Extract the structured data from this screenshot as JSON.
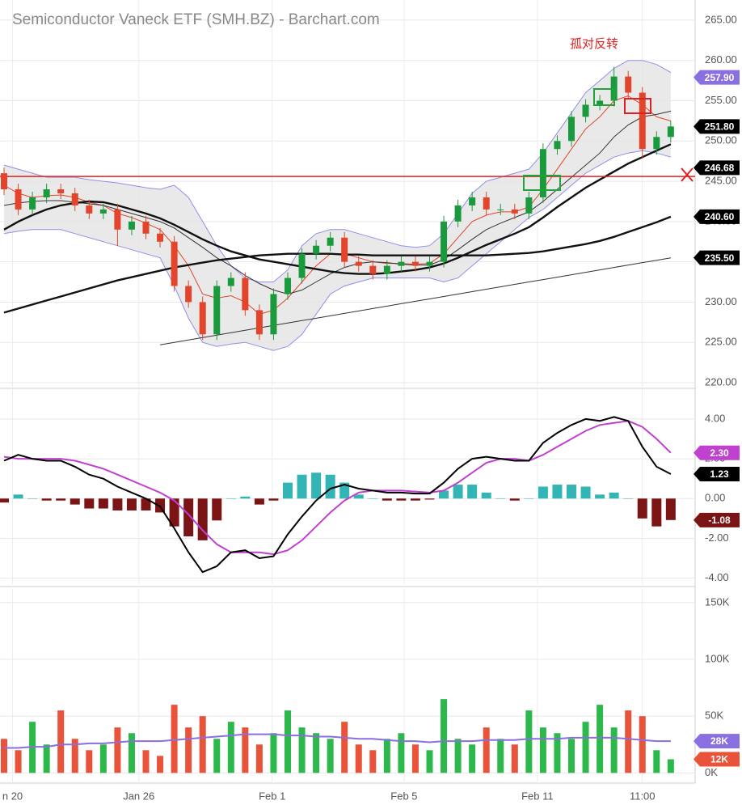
{
  "chart_data": [
    {
      "type": "candlestick",
      "title": "Semiconductor Vaneck ETF (SMH.BZ) - Barchart.com",
      "annotation": "孤对反转",
      "up_color": "#1a9a3c",
      "down_color": "#e2452b",
      "open": [
        246,
        244,
        241.5,
        243,
        244,
        243.5,
        242,
        241,
        241.5,
        239,
        240,
        238.5,
        237.5,
        232,
        230,
        226,
        232,
        233,
        229,
        226,
        231,
        233,
        236,
        237,
        238,
        235,
        234.5,
        233.5,
        234.5,
        235,
        234.5,
        235,
        240,
        242,
        243,
        241.5,
        241.5,
        241,
        243,
        249,
        250,
        253,
        254.5,
        255,
        258,
        256,
        249,
        250.5
      ],
      "high": [
        246.7,
        244.7,
        243.7,
        244.7,
        244.7,
        244.2,
        242.7,
        242.2,
        242.2,
        240.7,
        240.7,
        239.2,
        238.2,
        232.7,
        230.7,
        232.7,
        233.7,
        233.7,
        229.7,
        231.7,
        233.7,
        236.7,
        237.7,
        238.7,
        238.7,
        235.7,
        235.2,
        235.2,
        235.7,
        235.7,
        235.7,
        240.7,
        242.7,
        243.7,
        243.7,
        242.2,
        242.2,
        243.7,
        249.7,
        250.7,
        253.7,
        255.2,
        255.7,
        259.2,
        258.7,
        256.7,
        251.2,
        252.5
      ],
      "low": [
        243.3,
        240.8,
        240.8,
        242.3,
        242.8,
        241.3,
        240.3,
        240.3,
        237,
        238.3,
        237.8,
        236.8,
        231.3,
        229.3,
        225.3,
        225.3,
        231.3,
        228.3,
        225.3,
        225.3,
        230.3,
        232.3,
        235.3,
        236.3,
        234.3,
        233.8,
        232.8,
        232.8,
        233.8,
        233.8,
        233.8,
        234.3,
        239.3,
        241.3,
        240.8,
        240.8,
        240.3,
        240.3,
        242.3,
        248.3,
        249.3,
        252.3,
        253.8,
        254.3,
        255.3,
        247.8,
        248.3,
        249.8
      ],
      "close": [
        244,
        241.5,
        243,
        244,
        243.5,
        242,
        241,
        241.5,
        239,
        240,
        238.5,
        237.5,
        232,
        230,
        226,
        232,
        233,
        229,
        226,
        231,
        233,
        236,
        237,
        238,
        235,
        234.5,
        233.5,
        234.5,
        235,
        234.5,
        235,
        240,
        242,
        243,
        241.5,
        241.5,
        241,
        243,
        249,
        250,
        253,
        254.5,
        255,
        258,
        256,
        249,
        250.5,
        251.8
      ],
      "band": {
        "color": "#8f8fe8",
        "fill": "#e4e4e4",
        "upper": [
          247,
          246.5,
          246,
          245.5,
          245.5,
          245.5,
          245.2,
          245,
          244.8,
          244.5,
          244.2,
          244,
          244.5,
          243,
          240,
          237,
          234.5,
          233,
          232.5,
          232.5,
          234,
          237,
          238.5,
          239,
          239,
          238.5,
          238,
          237.5,
          237,
          236.8,
          237,
          238.5,
          241,
          243.5,
          245,
          245.5,
          246,
          246.5,
          248.5,
          251,
          253.5,
          256,
          257.5,
          259,
          260,
          260,
          259.5,
          258.5
        ],
        "lower": [
          238.5,
          238.8,
          239,
          239,
          239,
          238.5,
          238,
          237.5,
          237,
          236.5,
          236,
          235.5,
          232,
          228,
          225,
          224.5,
          224.8,
          225,
          224.5,
          224,
          224.5,
          226,
          228.5,
          231,
          232,
          232.5,
          233,
          233,
          233,
          233,
          233,
          232.5,
          233,
          234.5,
          236,
          237.5,
          239,
          240.5,
          241.5,
          243,
          244.5,
          246,
          247,
          248,
          248.5,
          248.8,
          248.5,
          248
        ]
      },
      "lines": [
        {
          "color": "#e2452b",
          "width": 1,
          "values": [
            244.5,
            243.5,
            243,
            243.2,
            243.3,
            243,
            242.4,
            242,
            241,
            240.5,
            239.8,
            239,
            237,
            234.5,
            231,
            230.5,
            230.8,
            230,
            228.5,
            229,
            230.5,
            232.5,
            234.5,
            236,
            236,
            235.5,
            235,
            234.8,
            234.8,
            234.7,
            234.8,
            236,
            238,
            240,
            240.8,
            241.2,
            241.2,
            241.8,
            244,
            246.5,
            249,
            251.5,
            253,
            255,
            255.6,
            254.5,
            253,
            252.5
          ]
        },
        {
          "color": "#333333",
          "width": 1,
          "values": [
            242,
            242.3,
            242.5,
            242.6,
            242.6,
            242.4,
            242.2,
            242,
            241.5,
            241,
            240.5,
            240,
            239.2,
            238,
            236.8,
            235.5,
            234.5,
            233.3,
            232.3,
            231.5,
            231,
            231.5,
            232.5,
            233.5,
            234.3,
            234.8,
            235,
            234.9,
            234.7,
            234.6,
            234.6,
            235.3,
            236.5,
            237.8,
            239,
            239.8,
            240.5,
            241.2,
            242.5,
            244,
            245.5,
            247,
            248.5,
            250.5,
            252,
            253,
            253.3,
            253.7
          ]
        },
        {
          "color": "#111111",
          "width": 2.4,
          "values": [
            239,
            240,
            240.8,
            241.5,
            242,
            242.3,
            242.5,
            242.4,
            242,
            241.5,
            241,
            240.4,
            239.6,
            238.7,
            237.8,
            237,
            236.3,
            235.8,
            235.3,
            235,
            234.7,
            234.4,
            234.1,
            233.8,
            233.6,
            233.5,
            233.5,
            233.6,
            233.8,
            234,
            234.3,
            234.8,
            235.5,
            236.3,
            237.1,
            237.8,
            238.5,
            239.3,
            240.5,
            241.8,
            243,
            244.2,
            245.2,
            246.2,
            247.2,
            248,
            248.8,
            249.6
          ]
        },
        {
          "color": "#111111",
          "width": 2.4,
          "values": [
            228.7,
            229.2,
            229.7,
            230.2,
            230.7,
            231.2,
            231.7,
            232.2,
            232.7,
            233.1,
            233.5,
            233.9,
            234.3,
            234.6,
            234.9,
            235.2,
            235.4,
            235.6,
            235.8,
            235.9,
            236,
            236,
            236,
            236,
            235.9,
            235.9,
            235.8,
            235.8,
            235.8,
            235.8,
            235.8,
            235.8,
            235.8,
            235.8,
            235.8,
            235.9,
            236,
            236.1,
            236.3,
            236.6,
            236.9,
            237.2,
            237.6,
            238.1,
            238.7,
            239.3,
            239.9,
            240.6
          ]
        },
        {
          "color": "#333333",
          "width": 1,
          "values": [
            null,
            null,
            null,
            null,
            null,
            null,
            null,
            null,
            null,
            null,
            null,
            224.7,
            225,
            225.3,
            225.6,
            225.9,
            226.2,
            226.5,
            226.8,
            227.1,
            227.4,
            227.7,
            228,
            228.3,
            228.6,
            228.9,
            229.2,
            229.5,
            229.8,
            230.1,
            230.4,
            230.7,
            231,
            231.3,
            231.6,
            231.9,
            232.2,
            232.5,
            232.8,
            233.1,
            233.4,
            233.7,
            234,
            234.3,
            234.6,
            234.9,
            235.2,
            235.5
          ]
        }
      ],
      "hline": {
        "value": 245.6,
        "color": "#e02020"
      },
      "price_labels": [
        {
          "value": 257.9,
          "label": "257.90",
          "color": "#8a6fe0"
        },
        {
          "value": 251.8,
          "label": "251.80",
          "color": "#000000"
        },
        {
          "value": 246.68,
          "label": "246.68",
          "color": "#000000"
        },
        {
          "value": 240.6,
          "label": "240.60",
          "color": "#000000"
        },
        {
          "value": 235.5,
          "label": "235.50",
          "color": "#000000"
        }
      ],
      "ylim": [
        219.5,
        267.5
      ],
      "yticks": [
        {
          "value": 220,
          "label": "220.00"
        },
        {
          "value": 225,
          "label": "225.00"
        },
        {
          "value": 230,
          "label": "230.00"
        },
        {
          "value": 235,
          "label": "235.00"
        },
        {
          "value": 240,
          "label": "240.00"
        },
        {
          "value": 245,
          "label": "245.00"
        },
        {
          "value": 250,
          "label": "250.00"
        },
        {
          "value": 255,
          "label": "255.00"
        },
        {
          "value": 260,
          "label": "260.00"
        },
        {
          "value": 265,
          "label": "265.00"
        }
      ]
    },
    {
      "type": "macd",
      "line_color": "#000000",
      "signal_color": "#c040d0",
      "pos_color": "#33b5b5",
      "neg_color": "#7b1414",
      "macd": [
        1.9,
        2.2,
        2.0,
        1.9,
        1.9,
        1.6,
        1.2,
        1.0,
        0.6,
        0.3,
        0.0,
        -0.4,
        -1.5,
        -2.7,
        -3.7,
        -3.4,
        -2.7,
        -2.6,
        -3.0,
        -2.9,
        -1.8,
        -0.9,
        -0.1,
        0.5,
        0.7,
        0.5,
        0.4,
        0.3,
        0.3,
        0.25,
        0.25,
        0.8,
        1.5,
        2.0,
        2.1,
        2.0,
        1.9,
        1.9,
        2.8,
        3.3,
        3.7,
        4.0,
        3.9,
        4.1,
        3.9,
        2.6,
        1.6,
        1.23
      ],
      "signal": [
        2.1,
        2.0,
        2.0,
        2.0,
        2.0,
        1.9,
        1.7,
        1.5,
        1.2,
        0.9,
        0.6,
        0.3,
        -0.1,
        -0.8,
        -1.6,
        -2.3,
        -2.7,
        -2.7,
        -2.7,
        -2.8,
        -2.6,
        -2.1,
        -1.4,
        -0.7,
        -0.1,
        0.3,
        0.4,
        0.4,
        0.4,
        0.35,
        0.3,
        0.4,
        0.8,
        1.3,
        1.8,
        2.0,
        2.0,
        1.9,
        2.2,
        2.6,
        3.0,
        3.4,
        3.7,
        3.8,
        3.9,
        3.6,
        3.0,
        2.3
      ],
      "histogram": [
        -0.2,
        0.2,
        0,
        -0.1,
        -0.1,
        -0.3,
        -0.5,
        -0.5,
        -0.6,
        -0.6,
        -0.6,
        -0.7,
        -1.4,
        -1.9,
        -2.1,
        -1.1,
        0,
        0.1,
        -0.3,
        -0.1,
        0.8,
        1.2,
        1.3,
        1.2,
        0.8,
        0.2,
        0,
        -0.1,
        -0.1,
        -0.1,
        -0.05,
        0.4,
        0.7,
        0.7,
        0.3,
        0,
        -0.1,
        0,
        0.6,
        0.7,
        0.7,
        0.6,
        0.2,
        0.3,
        0,
        -1.0,
        -1.4,
        -1.08
      ],
      "value_labels": [
        {
          "value": 2.3,
          "label": "2.30",
          "color": "#c040d0"
        },
        {
          "value": 1.23,
          "label": "1.23",
          "color": "#000000"
        },
        {
          "value": -1.08,
          "label": "-1.08",
          "color": "#7b1414"
        }
      ],
      "ylim": [
        -4.3,
        5.5
      ],
      "yticks": [
        {
          "value": -4,
          "label": "-4.00"
        },
        {
          "value": -2,
          "label": "-2.00"
        },
        {
          "value": 0,
          "label": "0.00"
        },
        {
          "value": 2,
          "label": "2.00"
        },
        {
          "value": 4,
          "label": "4.00"
        }
      ]
    },
    {
      "type": "bar",
      "up_color": "#2db84b",
      "down_color": "#e8533a",
      "avg_color": "#8a6fe0",
      "values": [
        30,
        20,
        45,
        25,
        55,
        30,
        20,
        25,
        40,
        35,
        20,
        15,
        60,
        40,
        50,
        30,
        45,
        40,
        25,
        35,
        55,
        40,
        35,
        30,
        45,
        25,
        20,
        30,
        35,
        25,
        20,
        65,
        30,
        25,
        40,
        30,
        25,
        55,
        40,
        35,
        30,
        45,
        60,
        40,
        55,
        50,
        20,
        12
      ],
      "average": [
        22,
        22,
        23,
        23,
        25,
        25,
        26,
        26,
        27,
        28,
        28,
        28,
        29,
        30,
        31,
        32,
        33,
        34,
        34,
        34,
        33,
        33,
        32,
        32,
        31,
        30,
        30,
        29,
        28,
        28,
        27,
        28,
        28,
        28,
        29,
        29,
        29,
        30,
        30,
        30,
        31,
        31,
        31,
        31,
        30,
        29,
        28,
        28
      ],
      "value_labels": [
        {
          "value": 28,
          "label": "28K",
          "color": "#8a6fe0"
        },
        {
          "value": 12,
          "label": "12K",
          "color": "#e8533a"
        }
      ],
      "ylim": [
        -9,
        162
      ],
      "yticks": [
        {
          "value": 0,
          "label": "0K"
        },
        {
          "value": 50,
          "label": "50K"
        },
        {
          "value": 100,
          "label": "100K"
        },
        {
          "value": 150,
          "label": "150K"
        }
      ],
      "xticks": [
        {
          "value": 0.6,
          "label": "n 20"
        },
        {
          "value": 9.5,
          "label": "Jan 26"
        },
        {
          "value": 18.9,
          "label": "Feb 1"
        },
        {
          "value": 28.2,
          "label": "Feb 5"
        },
        {
          "value": 37.6,
          "label": "Feb 11"
        },
        {
          "value": 45,
          "label": "11:00"
        }
      ]
    }
  ]
}
